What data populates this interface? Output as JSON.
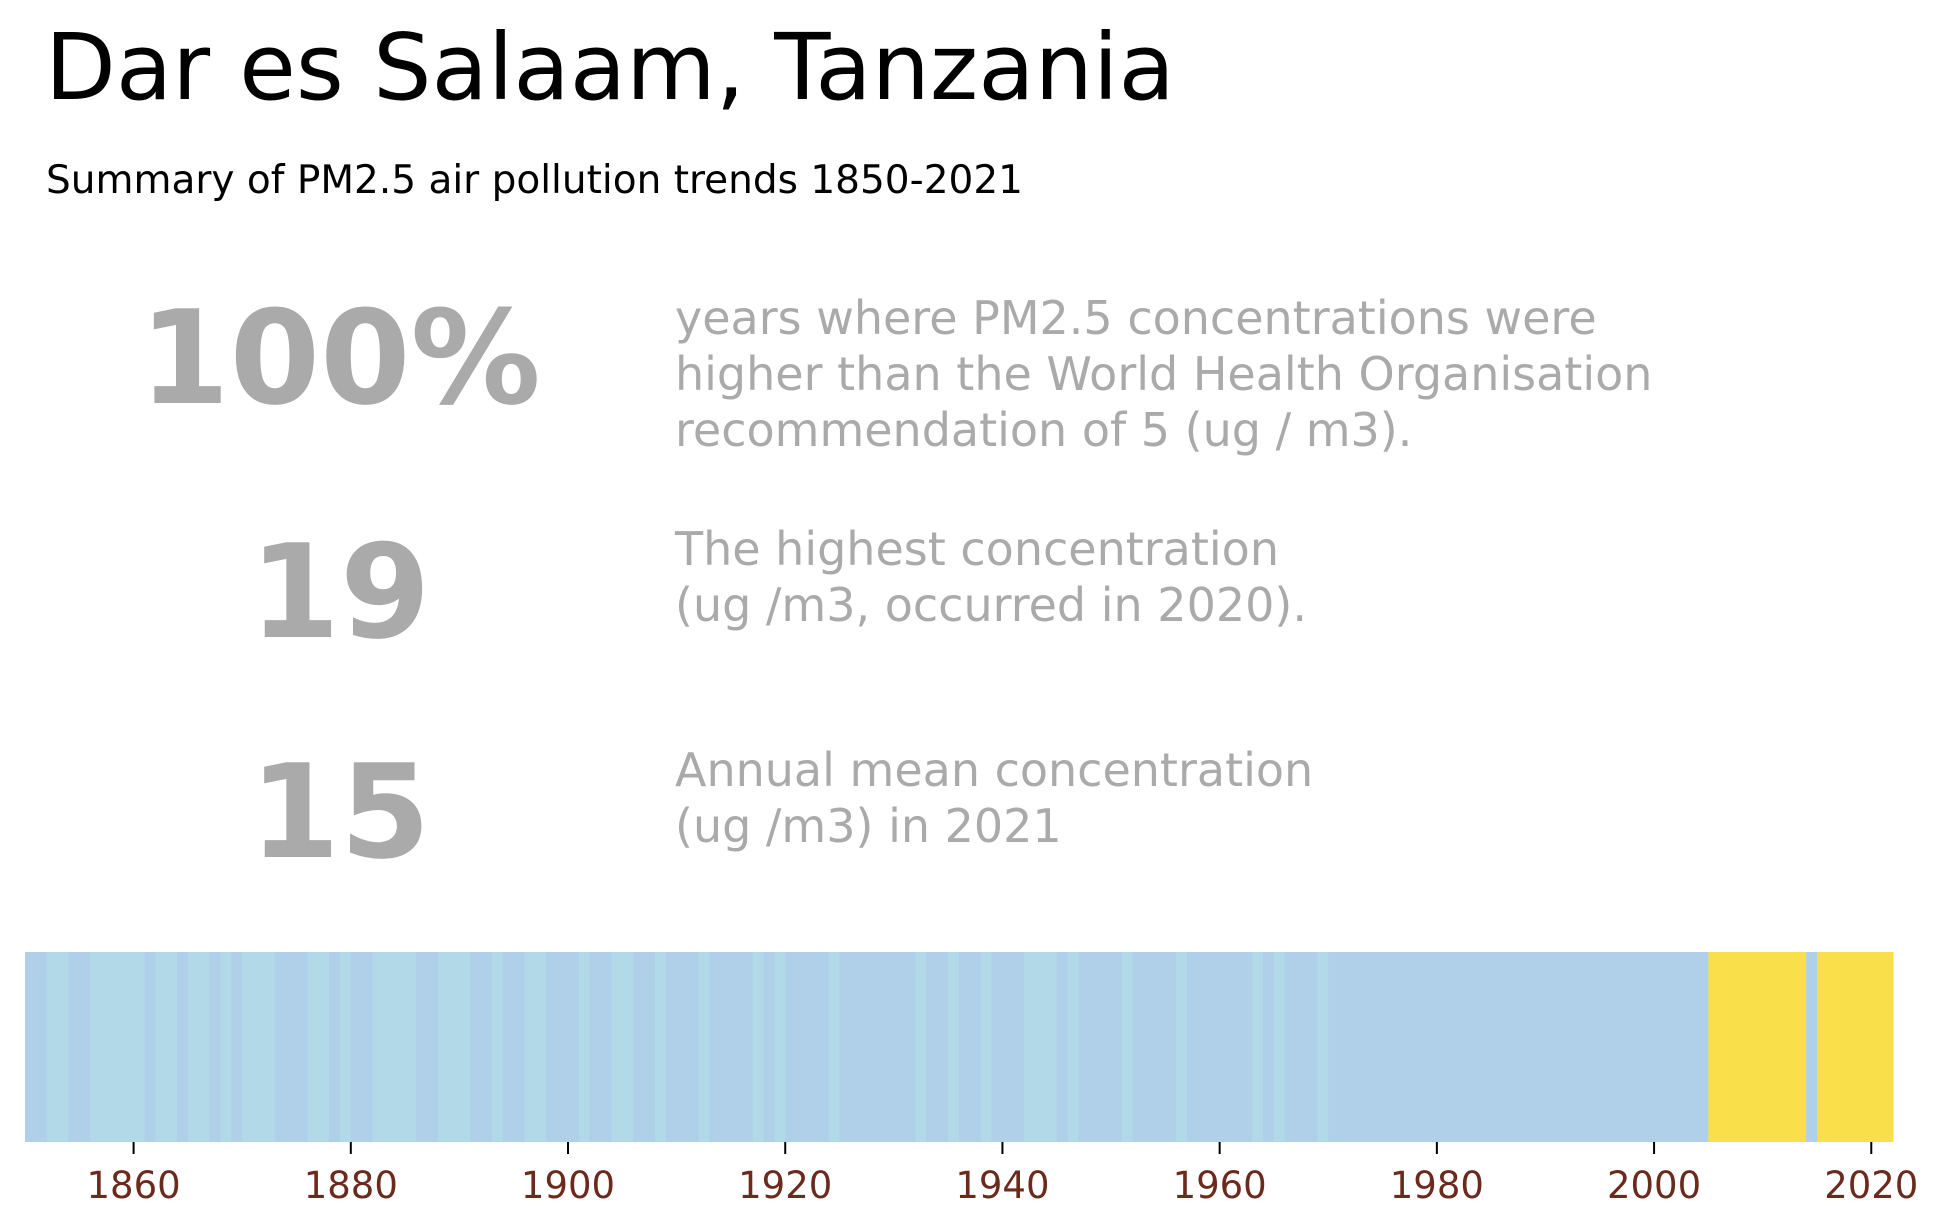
{
  "header": {
    "title": "Dar es Salaam, Tanzania",
    "subtitle": "Summary of PM2.5 air pollution trends 1850-2021"
  },
  "stats": [
    {
      "value": "100%",
      "description": "years where PM2.5 concentrations were\nhigher than the World Health Organisation\nrecommendation of 5 (ug / m3)."
    },
    {
      "value": "19",
      "description": "The highest concentration\n(ug /m3, occurred in 2020)."
    },
    {
      "value": "15",
      "description": "Annual mean concentration\n(ug /m3) in 2021"
    }
  ],
  "colors": {
    "stat_text": "#aaaaaa",
    "low": "#b0cfe9",
    "low_alt": "#b1d9e8",
    "high": "#f9e04b",
    "tick": "#6b2a1c"
  },
  "chart_data": {
    "type": "heatmap",
    "title": "",
    "xlabel": "",
    "ylabel": "",
    "xlim": [
      1850,
      2022
    ],
    "xticks": [
      "1860",
      "1880",
      "1900",
      "1920",
      "1940",
      "1960",
      "1980",
      "2000",
      "2020"
    ],
    "grid": false,
    "legend": "none",
    "segments": [
      {
        "start": 1850,
        "end": 1852,
        "category": "low"
      },
      {
        "start": 1852,
        "end": 1854,
        "category": "low_alt"
      },
      {
        "start": 1854,
        "end": 1856,
        "category": "low"
      },
      {
        "start": 1856,
        "end": 1861,
        "category": "low_alt"
      },
      {
        "start": 1861,
        "end": 1862,
        "category": "low"
      },
      {
        "start": 1862,
        "end": 1864,
        "category": "low_alt"
      },
      {
        "start": 1864,
        "end": 1865,
        "category": "low"
      },
      {
        "start": 1865,
        "end": 1867,
        "category": "low_alt"
      },
      {
        "start": 1867,
        "end": 1868,
        "category": "low"
      },
      {
        "start": 1868,
        "end": 1869,
        "category": "low_alt"
      },
      {
        "start": 1869,
        "end": 1870,
        "category": "low"
      },
      {
        "start": 1870,
        "end": 1873,
        "category": "low_alt"
      },
      {
        "start": 1873,
        "end": 1876,
        "category": "low"
      },
      {
        "start": 1876,
        "end": 1878,
        "category": "low_alt"
      },
      {
        "start": 1878,
        "end": 1879,
        "category": "low"
      },
      {
        "start": 1879,
        "end": 1880,
        "category": "low_alt"
      },
      {
        "start": 1880,
        "end": 1882,
        "category": "low"
      },
      {
        "start": 1882,
        "end": 1886,
        "category": "low_alt"
      },
      {
        "start": 1886,
        "end": 1888,
        "category": "low"
      },
      {
        "start": 1888,
        "end": 1891,
        "category": "low_alt"
      },
      {
        "start": 1891,
        "end": 1893,
        "category": "low"
      },
      {
        "start": 1893,
        "end": 1894,
        "category": "low_alt"
      },
      {
        "start": 1894,
        "end": 1896,
        "category": "low"
      },
      {
        "start": 1896,
        "end": 1898,
        "category": "low_alt"
      },
      {
        "start": 1898,
        "end": 1901,
        "category": "low"
      },
      {
        "start": 1901,
        "end": 1902,
        "category": "low_alt"
      },
      {
        "start": 1902,
        "end": 1904,
        "category": "low"
      },
      {
        "start": 1904,
        "end": 1906,
        "category": "low_alt"
      },
      {
        "start": 1906,
        "end": 1908,
        "category": "low"
      },
      {
        "start": 1908,
        "end": 1909,
        "category": "low_alt"
      },
      {
        "start": 1909,
        "end": 1912,
        "category": "low"
      },
      {
        "start": 1912,
        "end": 1913,
        "category": "low_alt"
      },
      {
        "start": 1913,
        "end": 1917,
        "category": "low"
      },
      {
        "start": 1917,
        "end": 1918,
        "category": "low_alt"
      },
      {
        "start": 1918,
        "end": 1919,
        "category": "low"
      },
      {
        "start": 1919,
        "end": 1920,
        "category": "low_alt"
      },
      {
        "start": 1920,
        "end": 1924,
        "category": "low"
      },
      {
        "start": 1924,
        "end": 1925,
        "category": "low_alt"
      },
      {
        "start": 1925,
        "end": 1932,
        "category": "low"
      },
      {
        "start": 1932,
        "end": 1933,
        "category": "low_alt"
      },
      {
        "start": 1933,
        "end": 1935,
        "category": "low"
      },
      {
        "start": 1935,
        "end": 1936,
        "category": "low_alt"
      },
      {
        "start": 1936,
        "end": 1938,
        "category": "low"
      },
      {
        "start": 1938,
        "end": 1939,
        "category": "low_alt"
      },
      {
        "start": 1939,
        "end": 1942,
        "category": "low"
      },
      {
        "start": 1942,
        "end": 1945,
        "category": "low_alt"
      },
      {
        "start": 1945,
        "end": 1946,
        "category": "low"
      },
      {
        "start": 1946,
        "end": 1947,
        "category": "low_alt"
      },
      {
        "start": 1947,
        "end": 1951,
        "category": "low"
      },
      {
        "start": 1951,
        "end": 1952,
        "category": "low_alt"
      },
      {
        "start": 1952,
        "end": 1956,
        "category": "low"
      },
      {
        "start": 1956,
        "end": 1957,
        "category": "low_alt"
      },
      {
        "start": 1957,
        "end": 1963,
        "category": "low"
      },
      {
        "start": 1963,
        "end": 1964,
        "category": "low_alt"
      },
      {
        "start": 1964,
        "end": 1965,
        "category": "low"
      },
      {
        "start": 1965,
        "end": 1966,
        "category": "low_alt"
      },
      {
        "start": 1966,
        "end": 1969,
        "category": "low"
      },
      {
        "start": 1969,
        "end": 1970,
        "category": "low_alt"
      },
      {
        "start": 1970,
        "end": 2005,
        "category": "low"
      },
      {
        "start": 2005,
        "end": 2014,
        "category": "high"
      },
      {
        "start": 2014,
        "end": 2015,
        "category": "low"
      },
      {
        "start": 2015,
        "end": 2022,
        "category": "high"
      }
    ]
  }
}
